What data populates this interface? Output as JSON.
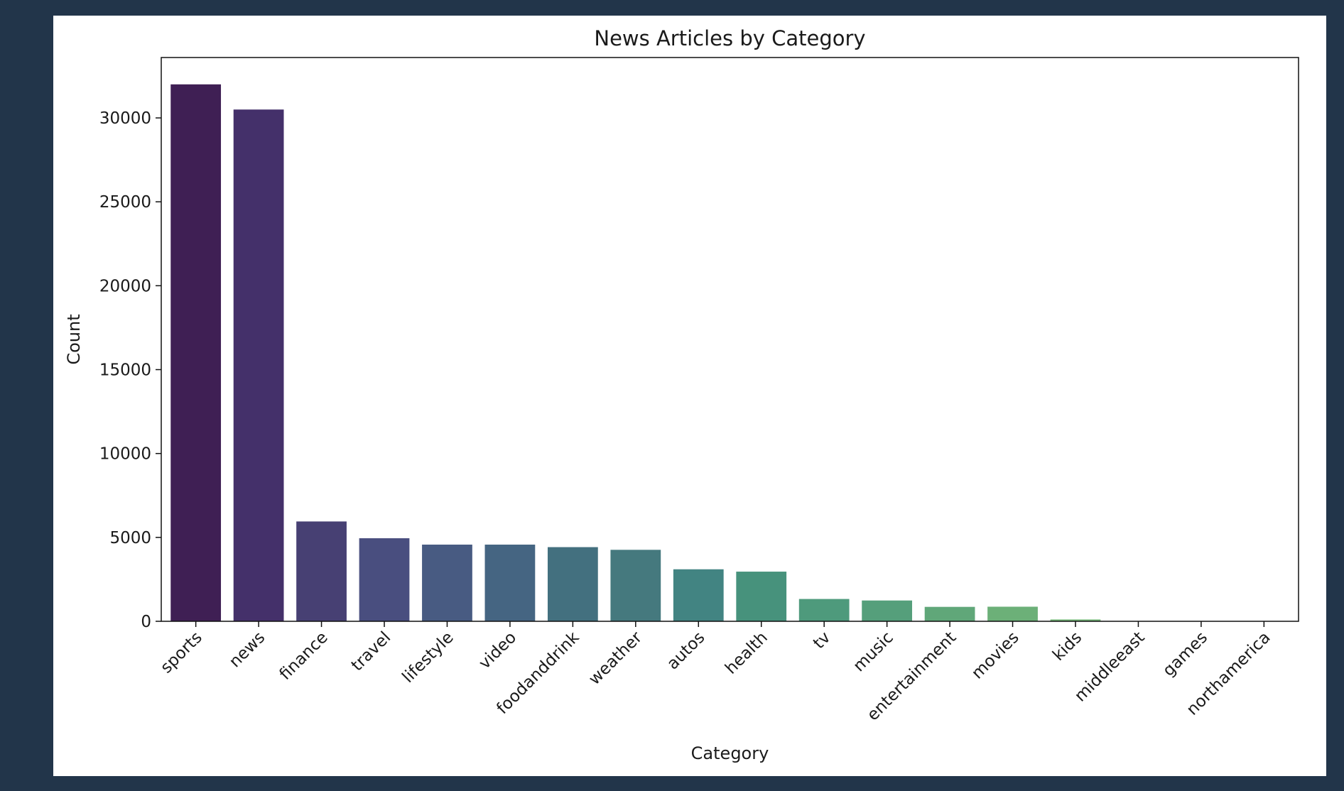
{
  "chart_data": {
    "type": "bar",
    "title": "News Articles by Category",
    "xlabel": "Category",
    "ylabel": "Count",
    "categories": [
      "sports",
      "news",
      "finance",
      "travel",
      "lifestyle",
      "video",
      "foodanddrink",
      "weather",
      "autos",
      "health",
      "tv",
      "music",
      "entertainment",
      "movies",
      "kids",
      "middleeast",
      "games",
      "northamerica"
    ],
    "values": [
      32000,
      30500,
      5950,
      4950,
      4570,
      4570,
      4420,
      4260,
      3100,
      2960,
      1330,
      1240,
      860,
      870,
      110,
      5,
      3,
      1
    ],
    "ylim": [
      0,
      33600
    ],
    "yticks": [
      0,
      5000,
      10000,
      15000,
      20000,
      25000,
      30000
    ],
    "colors": [
      "#3f1f54",
      "#44306a",
      "#474073",
      "#494e7f",
      "#485b82",
      "#456582",
      "#43707f",
      "#45797e",
      "#428482",
      "#47927c",
      "#4e9a7c",
      "#559f7b",
      "#60a779",
      "#6cb078",
      "#74b677",
      "#78ba76",
      "#7bbd76",
      "#80c275"
    ],
    "grid": false,
    "legend": "none"
  }
}
